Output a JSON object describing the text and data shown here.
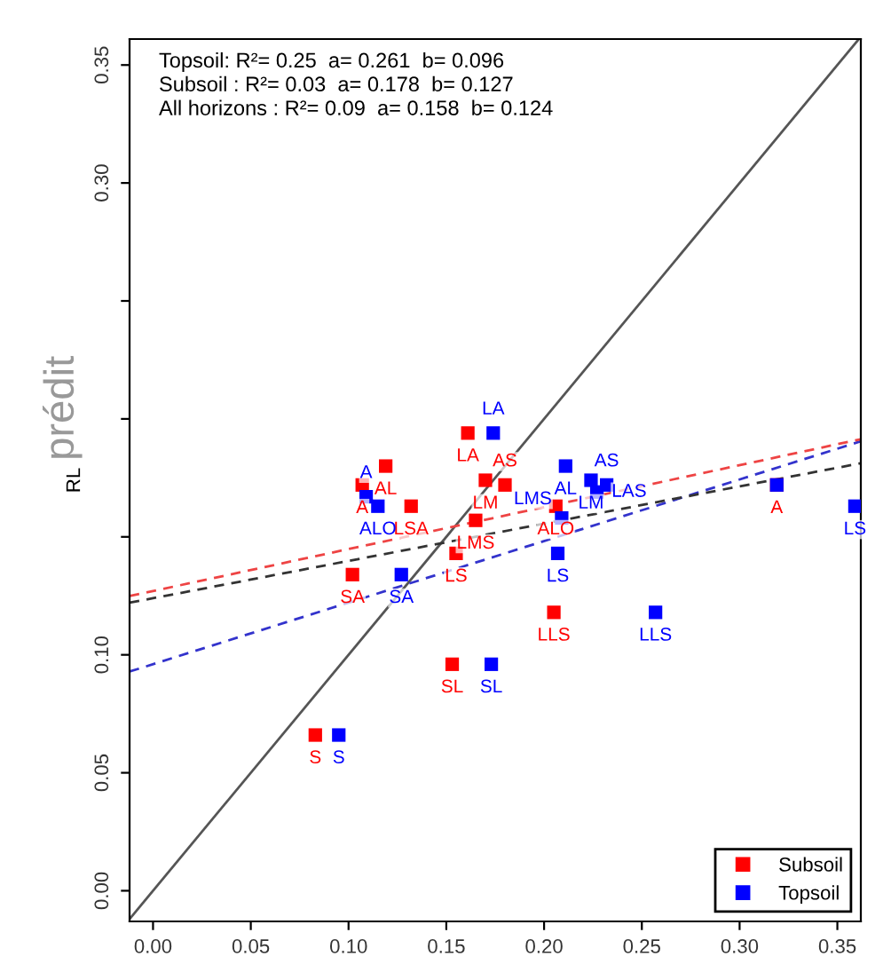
{
  "chart_data": {
    "type": "scatter",
    "ylabel": "RL",
    "annotations": [
      "Topsoil: R²= 0.25  a= 0.261  b= 0.096",
      "Subsoil : R²= 0.03  a= 0.178  b= 0.127",
      "All horizons : R²= 0.09  a= 0.158  b= 0.124",
      "prédit"
    ],
    "xlim": [
      -0.012,
      0.362
    ],
    "ylim": [
      -0.013,
      0.361
    ],
    "xticks": [
      {
        "value": 0,
        "label": "0.00"
      },
      {
        "value": 0.05,
        "label": "0.05"
      },
      {
        "value": 0.1,
        "label": "0.10"
      },
      {
        "value": 0.15,
        "label": "0.15"
      },
      {
        "value": 0.2,
        "label": "0.20"
      },
      {
        "value": 0.25,
        "label": "0.25"
      },
      {
        "value": 0.3,
        "label": "0.30"
      },
      {
        "value": 0.35,
        "label": "0.35"
      }
    ],
    "yticks": [
      {
        "value": 0,
        "label": "0.00"
      },
      {
        "value": 0.05,
        "label": "0.05"
      },
      {
        "value": 0.1,
        "label": "0.10"
      },
      {
        "value": 0.15,
        "label": null
      },
      {
        "value": 0.2,
        "label": null
      },
      {
        "value": 0.25,
        "label": null
      },
      {
        "value": 0.3,
        "label": "0.30"
      },
      {
        "value": 0.35,
        "label": "0.35"
      }
    ],
    "marker": "square",
    "grid": false,
    "legend": "bottom right",
    "series": [
      {
        "type": "line",
        "marker": "none",
        "color": "#555555",
        "line_style": "solid",
        "x": [
          -0.012,
          0.361
        ],
        "values": [
          -0.012,
          0.361
        ]
      },
      {
        "type": "line",
        "marker": "none",
        "color": "#3333cc",
        "line_style": "dashed",
        "x": [
          -0.012,
          0.362
        ],
        "values": [
          0.0929,
          0.1905
        ]
      },
      {
        "type": "line",
        "marker": "none",
        "color": "#ee4444",
        "line_style": "dashed",
        "x": [
          -0.012,
          0.362
        ],
        "values": [
          0.1249,
          0.1914
        ]
      },
      {
        "type": "line",
        "marker": "none",
        "color": "#333333",
        "line_style": "dashed",
        "x": [
          -0.012,
          0.362
        ],
        "values": [
          0.1221,
          0.1812
        ]
      },
      {
        "name": "Subsoil",
        "color": "#ff0000",
        "x": [
          0.161,
          0.119,
          0.107,
          0.132,
          0.17,
          0.18,
          0.165,
          0.155,
          0.102,
          0.153,
          0.083,
          0.206,
          0.205,
          0.319
        ],
        "values": [
          0.194,
          0.18,
          0.172,
          0.163,
          0.174,
          0.172,
          0.157,
          0.143,
          0.134,
          0.096,
          0.066,
          0.163,
          0.118,
          0.172
        ],
        "value_labels": [
          "LA",
          "AL",
          "A",
          "LSA",
          "LM",
          "AS",
          "LMS",
          "LS",
          "SA",
          "SL",
          "S",
          "ALO",
          "LLS",
          "A"
        ]
      },
      {
        "name": "Topsoil",
        "color": "#0000ff",
        "x": [
          0.174,
          0.109,
          0.115,
          0.127,
          0.173,
          0.095,
          0.211,
          0.224,
          0.232,
          0.227,
          0.209,
          0.207,
          0.257,
          0.319,
          0.359
        ],
        "values": [
          0.194,
          0.167,
          0.163,
          0.134,
          0.096,
          0.066,
          0.18,
          0.174,
          0.172,
          0.169,
          0.158,
          0.143,
          0.118,
          0.172,
          0.163
        ],
        "value_labels": [
          "LA",
          "A",
          "ALO",
          "SA",
          "SL",
          "S",
          "AL",
          "LM",
          "AS",
          "LAS",
          "LMS",
          "LS",
          "LLS",
          null,
          "LS"
        ]
      }
    ]
  }
}
